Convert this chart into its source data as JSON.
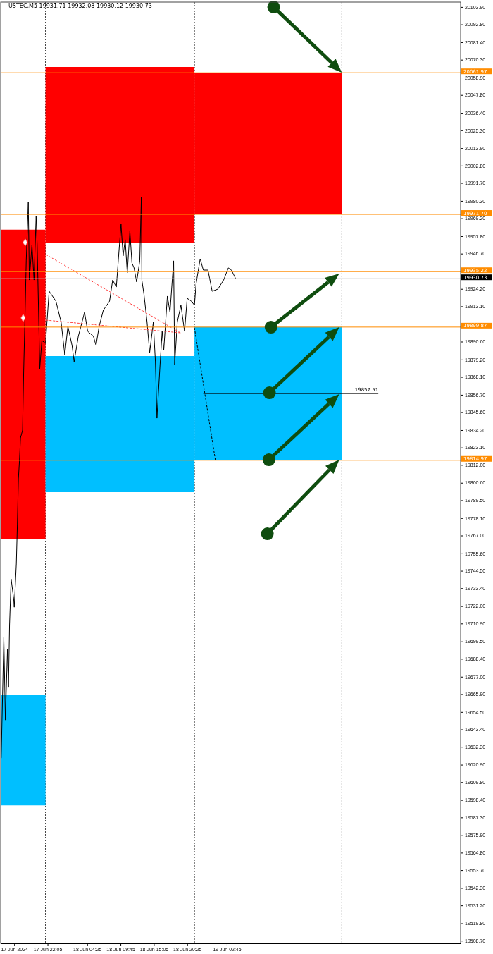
{
  "chart_data": {
    "type": "line",
    "title": "USTEC,M5  19931.71 19932.08 19930.12 19930.73",
    "xlim": [
      "2024-06-17T14:35",
      "2024-06-20T16:10"
    ],
    "ylim": [
      19507,
      20107
    ],
    "xticks": [
      {
        "value": "2024-06-17T16:45",
        "label": "17 Jun 2024"
      },
      {
        "value": "2024-06-17T22:05",
        "label": "17 Jun 22:05"
      },
      {
        "value": "2024-06-18T04:25",
        "label": "18 Jun 04:25"
      },
      {
        "value": "2024-06-18T09:45",
        "label": "18 Jun 09:45"
      },
      {
        "value": "2024-06-18T15:05",
        "label": "18 Jun 15:05"
      },
      {
        "value": "2024-06-18T20:25",
        "label": "18 Jun 20:25"
      },
      {
        "value": "2024-06-19T02:45",
        "label": "19 Jun 02:45"
      }
    ],
    "yticks": [
      {
        "value": 20103.9,
        "label": "20103.90"
      },
      {
        "value": 20092.8,
        "label": "20092.80"
      },
      {
        "value": 20081.4,
        "label": "20081.40"
      },
      {
        "value": 20070.3,
        "label": "20070.30"
      },
      {
        "value": 20058.9,
        "label": "20058.90"
      },
      {
        "value": 20047.8,
        "label": "20047.80"
      },
      {
        "value": 20036.4,
        "label": "20036.40"
      },
      {
        "value": 20025.3,
        "label": "20025.30"
      },
      {
        "value": 20013.9,
        "label": "20013.90"
      },
      {
        "value": 20002.8,
        "label": "20002.80"
      },
      {
        "value": 19991.7,
        "label": "19991.70"
      },
      {
        "value": 19980.3,
        "label": "19980.30"
      },
      {
        "value": 19969.2,
        "label": "19969.20"
      },
      {
        "value": 19957.8,
        "label": "19957.80"
      },
      {
        "value": 19946.7,
        "label": "19946.70"
      },
      {
        "value": 19924.2,
        "label": "19924.20"
      },
      {
        "value": 19913.1,
        "label": "19913.10"
      },
      {
        "value": 19890.6,
        "label": "19890.60"
      },
      {
        "value": 19879.2,
        "label": "19879.20"
      },
      {
        "value": 19868.1,
        "label": "19868.10"
      },
      {
        "value": 19856.7,
        "label": "19856.70"
      },
      {
        "value": 19845.6,
        "label": "19845.60"
      },
      {
        "value": 19834.2,
        "label": "19834.20"
      },
      {
        "value": 19823.1,
        "label": "19823.10"
      },
      {
        "value": 19812.0,
        "label": "19812.00"
      },
      {
        "value": 19800.6,
        "label": "19800.60"
      },
      {
        "value": 19789.5,
        "label": "19789.50"
      },
      {
        "value": 19778.1,
        "label": "19778.10"
      },
      {
        "value": 19767.0,
        "label": "19767.00"
      },
      {
        "value": 19755.6,
        "label": "19755.60"
      },
      {
        "value": 19744.5,
        "label": "19744.50"
      },
      {
        "value": 19733.4,
        "label": "19733.40"
      },
      {
        "value": 19722.0,
        "label": "19722.00"
      },
      {
        "value": 19710.9,
        "label": "19710.90"
      },
      {
        "value": 19699.5,
        "label": "19699.50"
      },
      {
        "value": 19688.4,
        "label": "19688.40"
      },
      {
        "value": 19677.0,
        "label": "19677.00"
      },
      {
        "value": 19665.9,
        "label": "19665.90"
      },
      {
        "value": 19654.5,
        "label": "19654.50"
      },
      {
        "value": 19643.4,
        "label": "19643.40"
      },
      {
        "value": 19632.3,
        "label": "19632.30"
      },
      {
        "value": 19620.9,
        "label": "19620.90"
      },
      {
        "value": 19609.8,
        "label": "19609.80"
      },
      {
        "value": 19598.4,
        "label": "19598.40"
      },
      {
        "value": 19587.3,
        "label": "19587.30"
      },
      {
        "value": 19575.9,
        "label": "19575.90"
      },
      {
        "value": 19564.8,
        "label": "19564.80"
      },
      {
        "value": 19553.7,
        "label": "19553.70"
      },
      {
        "value": 19542.3,
        "label": "19542.30"
      },
      {
        "value": 19531.2,
        "label": "19531.20"
      },
      {
        "value": 19519.8,
        "label": "19519.80"
      },
      {
        "value": 19508.7,
        "label": "19508.70"
      }
    ],
    "series": [
      {
        "type": "line",
        "color": "#ff0000",
        "x": [
          "2024-06-17T14:35",
          "2024-06-17T21:45"
        ],
        "values": [
          null,
          null
        ],
        "upper": [
          19961.9,
          19961.9
        ],
        "lower": [
          19764.5,
          19764.5
        ]
      },
      {
        "type": "line",
        "color": "#00bfff",
        "x": [
          "2024-06-17T14:35",
          "2024-06-17T21:45"
        ],
        "values": [
          null,
          null
        ],
        "upper": [
          19665.2,
          19665.2
        ],
        "lower": [
          19595.0,
          19595.0
        ]
      },
      {
        "type": "line",
        "color": "#ff0000",
        "x": [
          "2024-06-17T21:45",
          "2024-06-18T21:35"
        ],
        "values": [
          null,
          null
        ],
        "upper": [
          20065.7,
          20065.7
        ],
        "lower": [
          19953.3,
          19953.3
        ]
      },
      {
        "type": "line",
        "color": "#00bfff",
        "x": [
          "2024-06-17T21:45",
          "2024-06-18T21:35"
        ],
        "values": [
          null,
          null
        ],
        "upper": [
          19881.4,
          19881.4
        ],
        "lower": [
          19794.6,
          19794.6
        ]
      },
      {
        "type": "line",
        "color": "#ff0000",
        "x": [
          "2024-06-18T21:35",
          "2024-06-19T21:10"
        ],
        "values": [
          null,
          null
        ],
        "upper": [
          20061.97,
          20061.97
        ],
        "lower": [
          19971.7,
          19971.7
        ]
      },
      {
        "type": "line",
        "color": "#00bfff",
        "x": [
          "2024-06-18T21:35",
          "2024-06-19T21:10"
        ],
        "values": [
          null,
          null
        ],
        "upper": [
          19899.87,
          19899.87
        ],
        "lower": [
          19814.97,
          19814.97
        ]
      },
      {
        "color": "#000000",
        "line_style": "solid",
        "x": [
          "2024-06-17T14:40",
          "2024-06-17T15:05",
          "2024-06-17T15:20",
          "2024-06-17T15:40",
          "2024-06-17T15:50",
          "2024-06-17T16:00",
          "2024-06-17T16:15",
          "2024-06-17T16:40",
          "2024-06-17T16:45",
          "2024-06-17T17:05",
          "2024-06-17T17:15",
          "2024-06-17T17:25",
          "2024-06-17T17:35",
          "2024-06-17T17:45",
          "2024-06-17T18:05",
          "2024-06-17T18:15",
          "2024-06-17T18:30",
          "2024-06-17T18:40",
          "2024-06-17T19:00",
          "2024-06-17T19:10",
          "2024-06-17T19:35",
          "2024-06-17T19:55",
          "2024-06-17T20:15",
          "2024-06-17T20:25",
          "2024-06-17T20:50",
          "2024-06-17T21:10",
          "2024-06-17T21:45",
          "2024-06-17T22:20",
          "2024-06-17T23:25",
          "2024-06-18T00:15",
          "2024-06-18T00:50",
          "2024-06-18T01:20",
          "2024-06-18T02:00",
          "2024-06-18T02:20",
          "2024-06-18T03:00",
          "2024-06-18T04:00",
          "2024-06-18T04:30",
          "2024-06-18T05:25",
          "2024-06-18T05:50",
          "2024-06-18T06:20",
          "2024-06-18T07:00",
          "2024-06-18T08:00",
          "2024-06-18T08:30",
          "2024-06-18T09:05",
          "2024-06-18T09:30",
          "2024-06-18T09:50",
          "2024-06-18T10:10",
          "2024-06-18T10:30",
          "2024-06-18T10:50",
          "2024-06-18T11:15",
          "2024-06-18T11:35",
          "2024-06-18T11:55",
          "2024-06-18T12:20",
          "2024-06-18T12:50",
          "2024-06-18T13:05",
          "2024-06-18T13:10",
          "2024-06-18T13:30",
          "2024-06-18T14:00",
          "2024-06-18T14:25",
          "2024-06-18T15:00",
          "2024-06-18T15:20",
          "2024-06-18T15:35",
          "2024-06-18T16:05",
          "2024-06-18T16:25",
          "2024-06-18T16:40",
          "2024-06-18T17:15",
          "2024-06-18T17:40",
          "2024-06-18T18:15",
          "2024-06-18T18:25",
          "2024-06-18T18:50",
          "2024-06-18T19:25",
          "2024-06-18T20:00",
          "2024-06-18T20:25",
          "2024-06-18T21:05",
          "2024-06-18T21:35",
          "2024-06-18T21:50",
          "2024-06-18T22:30",
          "2024-06-18T23:00",
          "2024-06-18T23:45",
          "2024-06-19T00:25",
          "2024-06-19T01:20",
          "2024-06-19T02:15",
          "2024-06-19T03:00",
          "2024-06-19T03:30",
          "2024-06-19T04:10"
        ],
        "values": [
          19625.1,
          19702.0,
          19649.4,
          19694.4,
          19670.1,
          19710.1,
          19739.3,
          19726.3,
          19721.3,
          19748.8,
          19774.4,
          19803.2,
          19814.4,
          19829.2,
          19834.2,
          19870.1,
          19911.9,
          19942.1,
          19979.4,
          19929.9,
          19952.4,
          19929.9,
          19970.4,
          19952.4,
          19873.3,
          19891.3,
          19889.5,
          19922.7,
          19916.4,
          19903.0,
          19882.3,
          19900.3,
          19888.1,
          19877.8,
          19894.0,
          19909.3,
          19897.1,
          19894.0,
          19888.1,
          19900.3,
          19910.6,
          19916.4,
          19929.9,
          19925.4,
          19947.9,
          19965.4,
          19945.2,
          19955.6,
          19934.4,
          19961.0,
          19940.7,
          19937.6,
          19928.6,
          19942.1,
          19982.5,
          19929.9,
          19920.9,
          19903.0,
          19883.6,
          19903.0,
          19877.8,
          19841.8,
          19876.0,
          19897.1,
          19885.0,
          19919.6,
          19909.3,
          19942.1,
          19876.0,
          19903.0,
          19913.8,
          19897.1,
          19918.2,
          19916.4,
          19913.8,
          19927.2,
          19943.4,
          19936.2,
          19936.2,
          19922.7,
          19924.1,
          19929.9,
          19937.6,
          19936.2,
          19930.8
        ]
      },
      {
        "type": "line",
        "color": "#ff4040",
        "line_style": "dashed",
        "x": [
          "2024-06-17T21:50",
          "2024-06-18T19:20"
        ],
        "values": [
          19946.1,
          19896.2
        ]
      },
      {
        "type": "line",
        "color": "#ff4040",
        "line_style": "dashed",
        "x": [
          "2024-06-17T21:50",
          "2024-06-18T19:20"
        ],
        "values": [
          19904.3,
          19896.2
        ]
      },
      {
        "type": "line",
        "color": "#000000",
        "line_style": "dashed",
        "x": [
          "2024-06-18T21:35",
          "2024-06-19T00:55"
        ],
        "values": [
          19899.4,
          19815.3
        ]
      },
      {
        "type": "line",
        "color": "#000000",
        "line_style": "solid",
        "x": [
          "2024-06-18T23:00",
          "2024-06-20T03:00"
        ],
        "values": [
          19857.51,
          19857.51
        ],
        "value_labels": [
          null,
          "19857.51"
        ]
      },
      {
        "type": "scatter",
        "color": "#ffffff",
        "marker": "diamond",
        "x": [
          "2024-06-17T18:30",
          "2024-06-17T18:10"
        ],
        "values": [
          19953.8,
          19905.7
        ]
      }
    ],
    "ref_lines": [
      {
        "axis": "y",
        "value": 20061.97,
        "label": "20061.97",
        "color": "#ff8c00"
      },
      {
        "axis": "y",
        "value": 19971.7,
        "label": "19971.70",
        "color": "#ff8c00"
      },
      {
        "axis": "y",
        "value": 19935.22,
        "label": "19935.22",
        "color": "#ff8c00"
      },
      {
        "axis": "y",
        "value": 19930.73,
        "label": "19930.73",
        "color": "#c0c0c0"
      },
      {
        "axis": "y",
        "value": 19899.87,
        "label": "19899.87",
        "color": "#ff8c00"
      },
      {
        "axis": "y",
        "value": 19814.97,
        "label": "19814.97",
        "color": "#ff8c00"
      },
      {
        "axis": "x",
        "value": "2024-06-17T21:45",
        "color": "#000000",
        "line_style": "dotted"
      },
      {
        "axis": "x",
        "value": "2024-06-18T21:35",
        "color": "#000000",
        "line_style": "dotted"
      },
      {
        "axis": "x",
        "value": "2024-06-19T21:10",
        "color": "#000000",
        "line_style": "dotted"
      }
    ]
  }
}
